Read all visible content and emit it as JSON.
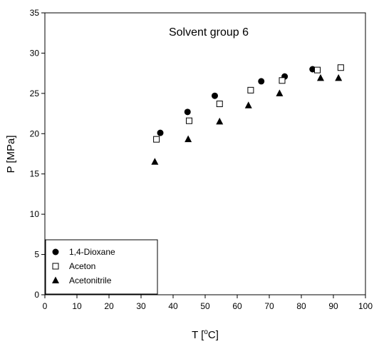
{
  "chart_data": {
    "type": "scatter",
    "title": "Solvent group 6",
    "xlabel": "T [°C]",
    "xlabel_parts": [
      "T [",
      "o",
      "C]"
    ],
    "ylabel": "P [MPa]",
    "xlim": [
      0,
      100
    ],
    "ylim": [
      0,
      35
    ],
    "xticks": [
      0,
      10,
      20,
      30,
      40,
      50,
      60,
      70,
      80,
      90,
      100
    ],
    "yticks": [
      0,
      5,
      10,
      15,
      20,
      25,
      30,
      35
    ],
    "grid": false,
    "legend_position": "bottom-left",
    "series": [
      {
        "name": "1,4-Dioxane",
        "marker": "filled-circle",
        "color": "#000000",
        "points": [
          [
            36,
            20.1
          ],
          [
            44.5,
            22.7
          ],
          [
            53,
            24.7
          ],
          [
            67.5,
            26.5
          ],
          [
            74.8,
            27.1
          ],
          [
            83.5,
            28.0
          ]
        ]
      },
      {
        "name": "Aceton",
        "marker": "open-square",
        "color": "#000000",
        "points": [
          [
            34.8,
            19.3
          ],
          [
            45,
            21.6
          ],
          [
            54.5,
            23.7
          ],
          [
            64.2,
            25.4
          ],
          [
            74,
            26.6
          ],
          [
            85,
            27.9
          ],
          [
            92.3,
            28.2
          ]
        ]
      },
      {
        "name": "Acetonitrile",
        "marker": "filled-triangle",
        "color": "#000000",
        "points": [
          [
            34.3,
            16.5
          ],
          [
            44.7,
            19.3
          ],
          [
            54.5,
            21.5
          ],
          [
            63.5,
            23.5
          ],
          [
            73.2,
            25.0
          ],
          [
            86,
            26.9
          ],
          [
            91.6,
            26.9
          ]
        ]
      }
    ]
  }
}
